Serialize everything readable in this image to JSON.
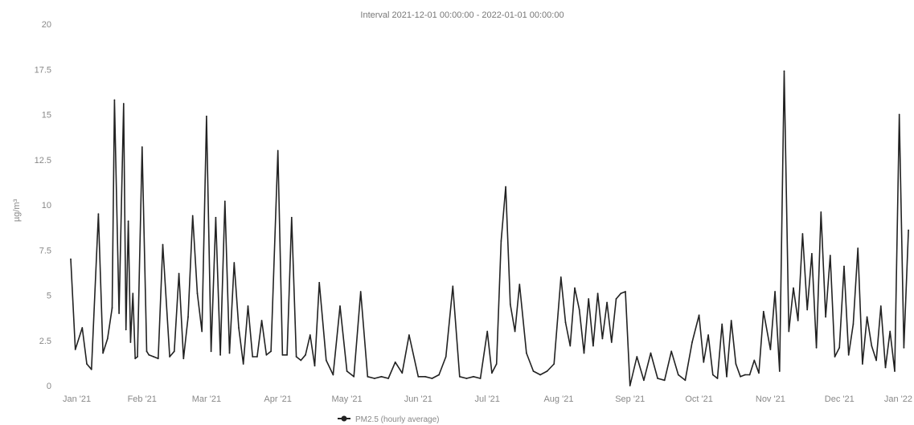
{
  "chart_data": {
    "type": "line",
    "title": "Interval 2021-12-01 00:00:00 - 2022-01-01 00:00:00",
    "xlabel": "",
    "ylabel": "µg/m³",
    "ylim": [
      0,
      20
    ],
    "yticks": [
      "0",
      "2.5",
      "5",
      "7.5",
      "10",
      "12.5",
      "15",
      "17.5",
      "20"
    ],
    "ytick_values": [
      0,
      2.5,
      5,
      7.5,
      10,
      12.5,
      15,
      17.5,
      20
    ],
    "xlim": [
      "2021-01-01",
      "2022-01-01"
    ],
    "xticks": [
      "Jan '21",
      "Feb '21",
      "Mar '21",
      "Apr '21",
      "May '21",
      "Jun '21",
      "Jul '21",
      "Aug '21",
      "Sep '21",
      "Oct '21",
      "Nov '21",
      "Dec '21",
      "Jan '22"
    ],
    "xtick_dates": [
      "2021-01-01",
      "2021-02-01",
      "2021-03-01",
      "2021-04-01",
      "2021-05-01",
      "2021-06-01",
      "2021-07-01",
      "2021-08-01",
      "2021-09-01",
      "2021-10-01",
      "2021-11-01",
      "2021-12-01",
      "2022-01-01"
    ],
    "grid": false,
    "legend_position": "bottom-center",
    "series": [
      {
        "name": "PM2.5 (hourly average)",
        "color": "#222222",
        "x": [
          "2021-01-01",
          "2021-01-03",
          "2021-01-06",
          "2021-01-08",
          "2021-01-10",
          "2021-01-13",
          "2021-01-15",
          "2021-01-17",
          "2021-01-19",
          "2021-01-20",
          "2021-01-22",
          "2021-01-24",
          "2021-01-25",
          "2021-01-26",
          "2021-01-27",
          "2021-01-28",
          "2021-01-29",
          "2021-01-30",
          "2021-02-01",
          "2021-02-03",
          "2021-02-04",
          "2021-02-06",
          "2021-02-08",
          "2021-02-10",
          "2021-02-13",
          "2021-02-15",
          "2021-02-17",
          "2021-02-19",
          "2021-02-21",
          "2021-02-23",
          "2021-02-25",
          "2021-02-27",
          "2021-03-01",
          "2021-03-03",
          "2021-03-05",
          "2021-03-07",
          "2021-03-09",
          "2021-03-11",
          "2021-03-13",
          "2021-03-15",
          "2021-03-17",
          "2021-03-19",
          "2021-03-21",
          "2021-03-23",
          "2021-03-25",
          "2021-03-27",
          "2021-03-29",
          "2021-04-01",
          "2021-04-03",
          "2021-04-05",
          "2021-04-07",
          "2021-04-09",
          "2021-04-11",
          "2021-04-13",
          "2021-04-15",
          "2021-04-17",
          "2021-04-19",
          "2021-04-22",
          "2021-04-25",
          "2021-04-28",
          "2021-05-01",
          "2021-05-04",
          "2021-05-07",
          "2021-05-10",
          "2021-05-13",
          "2021-05-16",
          "2021-05-19",
          "2021-05-22",
          "2021-05-25",
          "2021-05-28",
          "2021-06-01",
          "2021-06-04",
          "2021-06-07",
          "2021-06-10",
          "2021-06-13",
          "2021-06-16",
          "2021-06-19",
          "2021-06-22",
          "2021-06-25",
          "2021-06-28",
          "2021-07-01",
          "2021-07-03",
          "2021-07-05",
          "2021-07-07",
          "2021-07-09",
          "2021-07-11",
          "2021-07-13",
          "2021-07-15",
          "2021-07-18",
          "2021-07-21",
          "2021-07-24",
          "2021-07-27",
          "2021-07-30",
          "2021-08-02",
          "2021-08-04",
          "2021-08-06",
          "2021-08-08",
          "2021-08-10",
          "2021-08-12",
          "2021-08-14",
          "2021-08-16",
          "2021-08-18",
          "2021-08-20",
          "2021-08-22",
          "2021-08-24",
          "2021-08-26",
          "2021-08-28",
          "2021-08-30",
          "2021-09-01",
          "2021-09-04",
          "2021-09-07",
          "2021-09-10",
          "2021-09-13",
          "2021-09-16",
          "2021-09-19",
          "2021-09-22",
          "2021-09-25",
          "2021-09-28",
          "2021-10-01",
          "2021-10-03",
          "2021-10-05",
          "2021-10-07",
          "2021-10-09",
          "2021-10-11",
          "2021-10-13",
          "2021-10-15",
          "2021-10-17",
          "2021-10-19",
          "2021-10-21",
          "2021-10-23",
          "2021-10-25",
          "2021-10-27",
          "2021-10-29",
          "2021-11-01",
          "2021-11-03",
          "2021-11-05",
          "2021-11-07",
          "2021-11-09",
          "2021-11-11",
          "2021-11-13",
          "2021-11-15",
          "2021-11-17",
          "2021-11-19",
          "2021-11-21",
          "2021-11-23",
          "2021-11-25",
          "2021-11-27",
          "2021-11-29",
          "2021-12-01",
          "2021-12-03",
          "2021-12-05",
          "2021-12-07",
          "2021-12-09",
          "2021-12-11",
          "2021-12-13",
          "2021-12-15",
          "2021-12-17",
          "2021-12-19",
          "2021-12-21",
          "2021-12-23",
          "2021-12-25",
          "2021-12-27",
          "2021-12-29",
          "2021-12-31"
        ],
        "y": [
          7.0,
          2.0,
          3.2,
          1.2,
          0.9,
          9.5,
          1.8,
          2.6,
          4.3,
          15.8,
          4.0,
          15.6,
          3.1,
          9.1,
          2.4,
          5.1,
          1.5,
          1.6,
          13.2,
          1.9,
          1.7,
          1.6,
          1.5,
          7.8,
          1.6,
          1.9,
          6.2,
          1.5,
          3.8,
          9.4,
          5.1,
          3.0,
          14.9,
          1.9,
          9.3,
          1.7,
          10.2,
          1.8,
          6.8,
          3.2,
          1.2,
          4.4,
          1.6,
          1.6,
          3.6,
          1.7,
          1.9,
          13.0,
          1.7,
          1.7,
          9.3,
          1.6,
          1.4,
          1.7,
          2.8,
          1.1,
          5.7,
          1.4,
          0.6,
          4.4,
          0.8,
          0.5,
          5.2,
          0.5,
          0.4,
          0.5,
          0.4,
          1.3,
          0.7,
          2.8,
          0.5,
          0.5,
          0.4,
          0.6,
          1.6,
          5.5,
          0.5,
          0.4,
          0.5,
          0.4,
          3.0,
          0.7,
          1.2,
          8.0,
          11.0,
          4.5,
          3.0,
          5.6,
          1.8,
          0.8,
          0.6,
          0.8,
          1.2,
          6.0,
          3.5,
          2.2,
          5.4,
          4.2,
          1.8,
          4.8,
          2.2,
          5.1,
          2.6,
          4.6,
          2.4,
          4.8,
          5.1,
          5.2,
          0.0,
          1.6,
          0.3,
          1.8,
          0.4,
          0.3,
          1.9,
          0.6,
          0.3,
          2.4,
          3.9,
          1.3,
          2.8,
          0.6,
          0.4,
          3.4,
          0.5,
          3.6,
          1.2,
          0.5,
          0.6,
          0.6,
          1.4,
          0.7,
          4.1,
          2.0,
          5.2,
          0.8,
          17.4,
          3.0,
          5.4,
          3.6,
          8.4,
          4.2,
          7.3,
          2.1,
          9.6,
          3.8,
          7.2,
          1.6,
          2.1,
          6.6,
          1.7,
          3.4,
          7.6,
          1.2,
          3.8,
          2.2,
          1.4,
          4.4,
          1.0,
          3.0,
          0.8,
          15.0,
          2.1,
          8.6
        ]
      }
    ]
  },
  "legend": {
    "label": "PM2.5 (hourly average)",
    "marker_color": "#222222"
  }
}
